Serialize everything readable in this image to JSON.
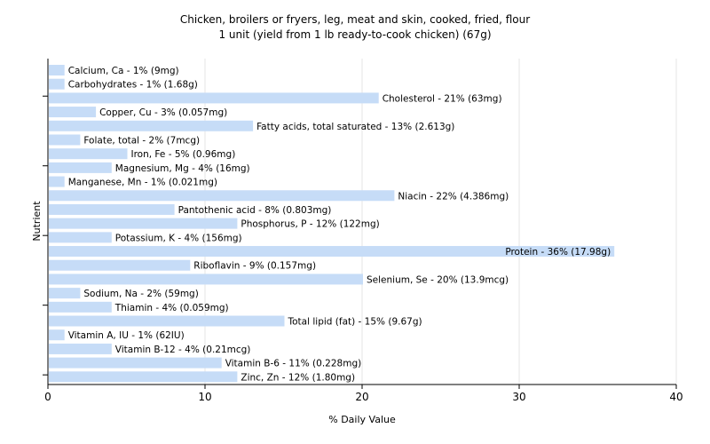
{
  "chart_data": {
    "type": "bar",
    "orientation": "horizontal",
    "title": "Chicken, broilers or fryers, leg, meat and skin, cooked, fried, flour",
    "subtitle": "1 unit (yield from 1 lb ready-to-cook chicken) (67g)",
    "xlabel": "% Daily Value",
    "ylabel": "Nutrient",
    "xlim": [
      0,
      40
    ],
    "xticks": [
      0,
      10,
      20,
      30,
      40
    ],
    "grid": "vertical",
    "bar_color": "#c6dcf7",
    "categories": [
      "Calcium, Ca",
      "Carbohydrates",
      "Cholesterol",
      "Copper, Cu",
      "Fatty acids, total saturated",
      "Folate, total",
      "Iron, Fe",
      "Magnesium, Mg",
      "Manganese, Mn",
      "Niacin",
      "Pantothenic acid",
      "Phosphorus, P",
      "Potassium, K",
      "Protein",
      "Riboflavin",
      "Selenium, Se",
      "Sodium, Na",
      "Thiamin",
      "Total lipid (fat)",
      "Vitamin A, IU",
      "Vitamin B-12",
      "Vitamin B-6",
      "Zinc, Zn"
    ],
    "values": [
      1,
      1,
      21,
      3,
      13,
      2,
      5,
      4,
      1,
      22,
      8,
      12,
      4,
      36,
      9,
      20,
      2,
      4,
      15,
      1,
      4,
      11,
      12
    ],
    "labels": [
      "Calcium, Ca - 1% (9mg)",
      "Carbohydrates - 1% (1.68g)",
      "Cholesterol - 21% (63mg)",
      "Copper, Cu - 3% (0.057mg)",
      "Fatty acids, total saturated - 13% (2.613g)",
      "Folate, total - 2% (7mcg)",
      "Iron, Fe - 5% (0.96mg)",
      "Magnesium, Mg - 4% (16mg)",
      "Manganese, Mn - 1% (0.021mg)",
      "Niacin - 22% (4.386mg)",
      "Pantothenic acid - 8% (0.803mg)",
      "Phosphorus, P - 12% (122mg)",
      "Potassium, K - 4% (156mg)",
      "Protein - 36% (17.98g)",
      "Riboflavin - 9% (0.157mg)",
      "Selenium, Se - 20% (13.9mcg)",
      "Sodium, Na - 2% (59mg)",
      "Thiamin - 4% (0.059mg)",
      "Total lipid (fat) - 15% (9.67g)",
      "Vitamin A, IU - 1% (62IU)",
      "Vitamin B-12 - 4% (0.21mcg)",
      "Vitamin B-6 - 11% (0.228mg)",
      "Zinc, Zn - 12% (1.80mg)"
    ]
  }
}
